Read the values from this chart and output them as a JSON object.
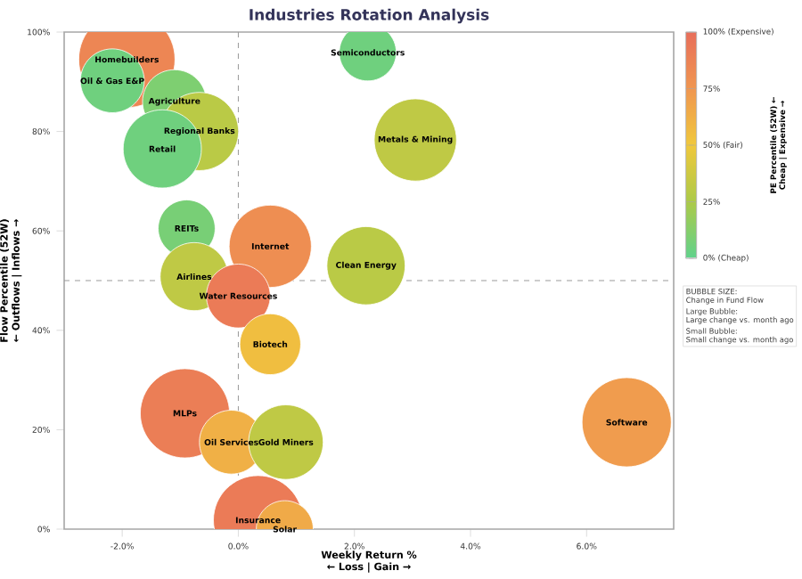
{
  "chart_data": {
    "type": "bubble",
    "title": "Industries Rotation Analysis",
    "xlabel": "Weekly Return % ← Loss | Gain →",
    "ylabel": "Flow Percentile (52W) ← Outflows | Inflows →",
    "clabel": "PE Percentile (52W) ← Cheap | Expensive →",
    "xlim": [
      -3,
      7.5
    ],
    "ylim": [
      0,
      100
    ],
    "xticks": [
      {
        "value": -2,
        "label": "-2.0%"
      },
      {
        "value": 0,
        "label": "0.0%"
      },
      {
        "value": 2,
        "label": "2.0%"
      },
      {
        "value": 4,
        "label": "4.0%"
      },
      {
        "value": 6,
        "label": "6.0%"
      }
    ],
    "yticks": [
      {
        "value": 0,
        "label": "0%"
      },
      {
        "value": 20,
        "label": "20%"
      },
      {
        "value": 40,
        "label": "40%"
      },
      {
        "value": 60,
        "label": "60%"
      },
      {
        "value": 80,
        "label": "80%"
      },
      {
        "value": 100,
        "label": "100%"
      }
    ],
    "clim": [
      0,
      100
    ],
    "cticks": [
      {
        "value": 0,
        "label": "0% (Cheap)"
      },
      {
        "value": 25,
        "label": "25%"
      },
      {
        "value": 50,
        "label": "50% (Fair)"
      },
      {
        "value": 75,
        "label": "75%"
      },
      {
        "value": 100,
        "label": "100% (Expensive)"
      }
    ],
    "ref_lines": [
      {
        "axis": "x",
        "value": 0,
        "line_style": "dashed"
      },
      {
        "axis": "y",
        "value": 50,
        "line_style": "dashed"
      }
    ],
    "annotations": [
      "BUBBLE SIZE:",
      "Change in Fund Flow",
      "Large Bubble:",
      "Large change vs. month ago",
      "Small Bubble:",
      "Small change vs. month ago"
    ],
    "series": [
      {
        "name": "Homebuilders",
        "x": [
          -1.92
        ],
        "values": [
          94.5
        ],
        "sizes": [
          1.0
        ],
        "cvalues": [
          85
        ]
      },
      {
        "name": "Oil & Gas E&P",
        "x": [
          -2.17
        ],
        "values": [
          90.2
        ],
        "sizes": [
          0.44
        ],
        "cvalues": [
          5
        ]
      },
      {
        "name": "Agriculture",
        "x": [
          -1.1
        ],
        "values": [
          86
        ],
        "sizes": [
          0.44
        ],
        "cvalues": [
          10
        ]
      },
      {
        "name": "Regional Banks",
        "x": [
          -0.67
        ],
        "values": [
          80
        ],
        "sizes": [
          0.66
        ],
        "cvalues": [
          30
        ]
      },
      {
        "name": "Retail",
        "x": [
          -1.31
        ],
        "values": [
          76.5
        ],
        "sizes": [
          0.66
        ],
        "cvalues": [
          5
        ]
      },
      {
        "name": "Semiconductors",
        "x": [
          2.23
        ],
        "values": [
          95.9
        ],
        "sizes": [
          0.35
        ],
        "cvalues": [
          5
        ]
      },
      {
        "name": "Metals & Mining",
        "x": [
          3.05
        ],
        "values": [
          78.3
        ],
        "sizes": [
          0.73
        ],
        "cvalues": [
          32
        ]
      },
      {
        "name": "REITs",
        "x": [
          -0.89
        ],
        "values": [
          60.5
        ],
        "sizes": [
          0.35
        ],
        "cvalues": [
          8
        ]
      },
      {
        "name": "Internet",
        "x": [
          0.55
        ],
        "values": [
          56.9
        ],
        "sizes": [
          0.73
        ],
        "cvalues": [
          80
        ]
      },
      {
        "name": "Clean Energy",
        "x": [
          2.2
        ],
        "values": [
          53
        ],
        "sizes": [
          0.66
        ],
        "cvalues": [
          30
        ]
      },
      {
        "name": "Airlines",
        "x": [
          -0.76
        ],
        "values": [
          50.8
        ],
        "sizes": [
          0.5
        ],
        "cvalues": [
          32
        ]
      },
      {
        "name": "Water Resources",
        "x": [
          0.0
        ],
        "values": [
          46.9
        ],
        "sizes": [
          0.44
        ],
        "cvalues": [
          92
        ]
      },
      {
        "name": "Biotech",
        "x": [
          0.55
        ],
        "values": [
          37.2
        ],
        "sizes": [
          0.4
        ],
        "cvalues": [
          55
        ]
      },
      {
        "name": "MLPs",
        "x": [
          -0.92
        ],
        "values": [
          23.3
        ],
        "sizes": [
          0.86
        ],
        "cvalues": [
          90
        ]
      },
      {
        "name": "Oil Services",
        "x": [
          -0.12
        ],
        "values": [
          17.5
        ],
        "sizes": [
          0.44
        ],
        "cvalues": [
          62
        ]
      },
      {
        "name": "Gold Miners",
        "x": [
          0.82
        ],
        "values": [
          17.5
        ],
        "sizes": [
          0.6
        ],
        "cvalues": [
          32
        ]
      },
      {
        "name": "Insurance",
        "x": [
          0.34
        ],
        "values": [
          1.8
        ],
        "sizes": [
          0.86
        ],
        "cvalues": [
          92
        ]
      },
      {
        "name": "Solar",
        "x": [
          0.8
        ],
        "values": [
          0
        ],
        "sizes": [
          0.35
        ],
        "cvalues": [
          65
        ]
      },
      {
        "name": "Software",
        "x": [
          6.69
        ],
        "values": [
          21.5
        ],
        "sizes": [
          0.86
        ],
        "cvalues": [
          72
        ]
      }
    ]
  }
}
